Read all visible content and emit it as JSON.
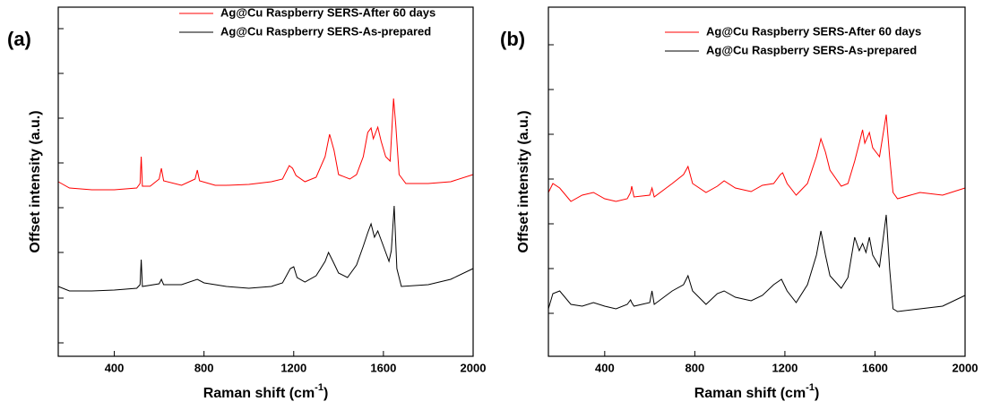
{
  "chart_data": [
    {
      "type": "line",
      "panel": "(a)",
      "xlabel": {
        "text": "Raman shift (cm",
        "sup": "-1",
        "end": ")"
      },
      "ylabel": "Offset intensity (a.u.)",
      "xlim": [
        150,
        2000
      ],
      "xticks": [
        400,
        800,
        1200,
        1600,
        2000
      ],
      "ylim": [
        0,
        390
      ],
      "yticks": [
        15,
        65,
        116,
        166,
        216,
        266,
        316,
        366
      ],
      "series": [
        {
          "name": "Ag@Cu Raspberry SERS-After 60 days",
          "color": "#ff0000",
          "x": [
            150,
            200,
            300,
            400,
            500,
            515,
            520,
            525,
            560,
            600,
            610,
            620,
            700,
            760,
            770,
            780,
            850,
            900,
            1000,
            1100,
            1150,
            1180,
            1195,
            1210,
            1250,
            1300,
            1340,
            1360,
            1380,
            1400,
            1450,
            1480,
            1510,
            1530,
            1545,
            1555,
            1575,
            1590,
            1610,
            1630,
            1645,
            1655,
            1670,
            1700,
            1800,
            1900,
            2000
          ],
          "values": [
            195,
            188,
            186,
            186,
            188,
            193,
            223,
            190,
            190,
            198,
            210,
            196,
            191,
            198,
            208,
            196,
            191,
            191,
            192,
            195,
            198,
            213,
            210,
            202,
            195,
            200,
            223,
            248,
            230,
            203,
            198,
            203,
            223,
            250,
            255,
            243,
            256,
            240,
            223,
            218,
            288,
            258,
            203,
            193,
            193,
            195,
            203
          ]
        },
        {
          "name": "Ag@Cu Raspberry SERS-As-prepared",
          "color": "#000000",
          "x": [
            150,
            200,
            300,
            400,
            500,
            515,
            520,
            525,
            600,
            610,
            620,
            700,
            770,
            800,
            900,
            1000,
            1100,
            1150,
            1185,
            1200,
            1215,
            1250,
            1300,
            1340,
            1355,
            1375,
            1400,
            1440,
            1480,
            1510,
            1530,
            1545,
            1560,
            1575,
            1600,
            1625,
            1635,
            1648,
            1660,
            1680,
            1800,
            1900,
            2000
          ],
          "values": [
            78,
            73,
            73,
            74,
            76,
            80,
            108,
            78,
            81,
            86,
            80,
            80,
            86,
            82,
            78,
            76,
            78,
            82,
            98,
            100,
            88,
            83,
            90,
            106,
            116,
            106,
            93,
            88,
            102,
            123,
            138,
            148,
            133,
            140,
            123,
            106,
            118,
            168,
            98,
            78,
            80,
            86,
            98
          ]
        }
      ]
    },
    {
      "type": "line",
      "panel": "(b)",
      "xlabel": {
        "text": "Raman shift (cm",
        "sup": "-1",
        "end": ")"
      },
      "ylabel": "Offset intensity (a.u.)",
      "xlim": [
        150,
        2000
      ],
      "xticks": [
        400,
        800,
        1200,
        1600,
        2000
      ],
      "ylim": [
        0,
        390
      ],
      "yticks": [
        48,
        98,
        148,
        198,
        248,
        298,
        348
      ],
      "series": [
        {
          "name": "Ag@Cu Raspberry SERS-After 60 days",
          "color": "#ff0000",
          "x": [
            150,
            170,
            200,
            250,
            300,
            350,
            400,
            450,
            500,
            515,
            520,
            530,
            600,
            610,
            620,
            700,
            750,
            770,
            790,
            850,
            900,
            930,
            980,
            1050,
            1100,
            1150,
            1180,
            1190,
            1210,
            1250,
            1300,
            1340,
            1360,
            1380,
            1400,
            1450,
            1480,
            1510,
            1530,
            1545,
            1555,
            1575,
            1590,
            1620,
            1650,
            1665,
            1680,
            1700,
            1800,
            1900,
            2000
          ],
          "values": [
            183,
            193,
            188,
            173,
            180,
            183,
            176,
            173,
            176,
            183,
            190,
            178,
            180,
            188,
            178,
            193,
            203,
            212,
            193,
            183,
            190,
            196,
            188,
            184,
            191,
            193,
            203,
            205,
            193,
            180,
            193,
            223,
            243,
            228,
            208,
            190,
            193,
            218,
            238,
            253,
            238,
            250,
            233,
            223,
            270,
            223,
            183,
            176,
            183,
            180,
            188
          ]
        },
        {
          "name": "Ag@Cu Raspberry SERS-As-prepared",
          "color": "#000000",
          "x": [
            150,
            170,
            200,
            250,
            300,
            350,
            400,
            450,
            500,
            515,
            520,
            530,
            600,
            610,
            620,
            700,
            750,
            770,
            790,
            850,
            900,
            930,
            980,
            1050,
            1100,
            1150,
            1185,
            1210,
            1250,
            1300,
            1340,
            1360,
            1380,
            1400,
            1450,
            1480,
            1510,
            1530,
            1545,
            1560,
            1575,
            1590,
            1620,
            1650,
            1665,
            1680,
            1700,
            1800,
            1900,
            2000
          ],
          "values": [
            53,
            70,
            73,
            58,
            56,
            60,
            56,
            53,
            58,
            63,
            60,
            56,
            60,
            73,
            58,
            73,
            80,
            90,
            73,
            58,
            70,
            73,
            66,
            62,
            68,
            80,
            86,
            73,
            60,
            80,
            113,
            140,
            113,
            90,
            76,
            88,
            133,
            118,
            126,
            116,
            133,
            113,
            100,
            158,
            98,
            53,
            50,
            53,
            56,
            68
          ]
        }
      ]
    }
  ]
}
